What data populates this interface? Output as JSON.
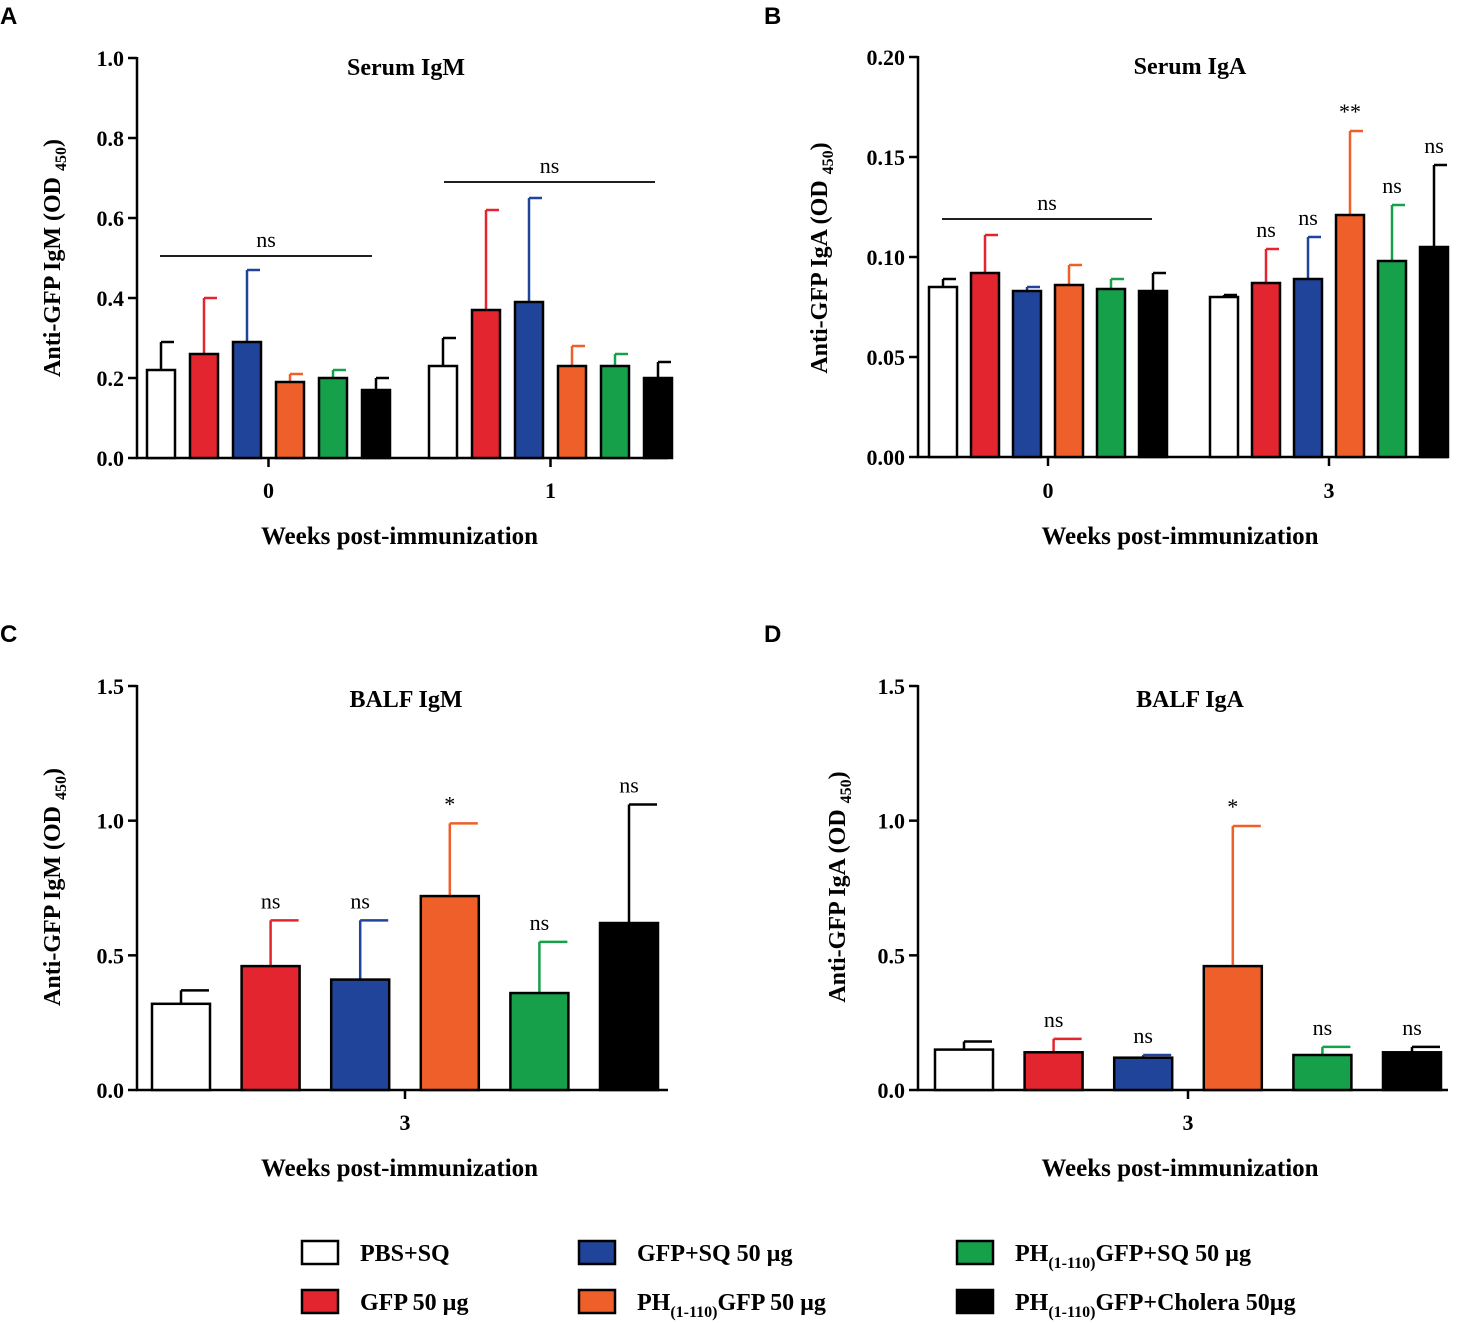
{
  "figure": {
    "groups": [
      {
        "name": "PBS+SQ",
        "color": "#ffffff"
      },
      {
        "name": "GFP 50 µg",
        "color": "#e32530"
      },
      {
        "name": "GFP+SQ 50 µg",
        "color": "#1f449a"
      },
      {
        "name": "PH(1-110)GFP 50 µg",
        "color": "#ef5f2a"
      },
      {
        "name": "PH(1-110)GFP+SQ 50 µg",
        "color": "#16a04a"
      },
      {
        "name": "PH(1-110)GFP+Cholera 50µg",
        "color": "#000000"
      }
    ]
  },
  "legend": {
    "items": [
      {
        "text": "PBS+SQ"
      },
      {
        "text": "GFP 50 µg"
      },
      {
        "text": "GFP+SQ 50 µg"
      },
      {
        "pre": "PH",
        "sub": "(1-110)",
        "post": "GFP 50 µg"
      },
      {
        "pre": "PH",
        "sub": "(1-110)",
        "post": "GFP+SQ 50 µg"
      },
      {
        "pre": "PH",
        "sub": "(1-110)",
        "post": "GFP+Cholera 50µg"
      }
    ]
  },
  "chart_data": [
    {
      "panel": "A",
      "type": "bar",
      "title": "Serum IgM",
      "ylabel_main": "Anti-GFP IgM (OD",
      "ylabel_sub": "450",
      "ylabel_end": ")",
      "xlabel": "Weeks post-immunization",
      "ylim": [
        0,
        1.0
      ],
      "yticks": [
        "0.0",
        "0.2",
        "0.4",
        "0.6",
        "0.8",
        "1.0"
      ],
      "categories": [
        "0",
        "1"
      ],
      "values": [
        [
          0.22,
          0.26,
          0.29,
          0.19,
          0.2,
          0.17
        ],
        [
          0.23,
          0.37,
          0.39,
          0.23,
          0.23,
          0.2
        ]
      ],
      "errors": [
        [
          0.07,
          0.14,
          0.18,
          0.02,
          0.02,
          0.03
        ],
        [
          0.07,
          0.25,
          0.26,
          0.05,
          0.03,
          0.04
        ]
      ],
      "group_annotations": [
        {
          "text": "ns",
          "level": 0.505
        },
        {
          "text": "ns",
          "level": 0.69
        }
      ],
      "bar_annotations": [
        [],
        []
      ]
    },
    {
      "panel": "B",
      "type": "bar",
      "title": "Serum IgA",
      "ylabel_main": "Anti-GFP IgA (OD",
      "ylabel_sub": "450",
      "ylabel_end": ")",
      "xlabel": "Weeks post-immunization",
      "ylim": [
        0,
        0.2
      ],
      "yticks": [
        "0.00",
        "0.05",
        "0.10",
        "0.15",
        "0.20"
      ],
      "categories": [
        "0",
        "3"
      ],
      "values": [
        [
          0.085,
          0.092,
          0.083,
          0.086,
          0.084,
          0.083
        ],
        [
          0.08,
          0.087,
          0.089,
          0.121,
          0.098,
          0.105
        ]
      ],
      "errors": [
        [
          0.004,
          0.019,
          0.002,
          0.01,
          0.005,
          0.009
        ],
        [
          0.001,
          0.017,
          0.021,
          0.042,
          0.028,
          0.041
        ]
      ],
      "group_annotations": [
        {
          "text": "ns",
          "level": 0.119
        },
        null
      ],
      "bar_annotations": [
        [],
        [
          "",
          "ns",
          "ns",
          "**",
          "ns",
          "ns"
        ]
      ]
    },
    {
      "panel": "C",
      "type": "bar",
      "title": "BALF IgM",
      "ylabel_main": "Anti-GFP IgM (OD",
      "ylabel_sub": "450",
      "ylabel_end": ")",
      "xlabel": "Weeks post-immunization",
      "ylim": [
        0,
        1.5
      ],
      "yticks": [
        "0.0",
        "0.5",
        "1.0",
        "1.5"
      ],
      "categories": [
        "3"
      ],
      "values": [
        [
          0.32,
          0.46,
          0.41,
          0.72,
          0.36,
          0.62
        ]
      ],
      "errors": [
        [
          0.05,
          0.17,
          0.22,
          0.27,
          0.19,
          0.44
        ]
      ],
      "group_annotations": [
        null
      ],
      "bar_annotations": [
        [
          "",
          "ns",
          "ns",
          "*",
          "ns",
          "ns"
        ]
      ]
    },
    {
      "panel": "D",
      "type": "bar",
      "title": "BALF IgA",
      "ylabel_main": "Anti-GFP IgA (OD",
      "ylabel_sub": "450",
      "ylabel_end": ")",
      "xlabel": "Weeks post-immunization",
      "ylim": [
        0,
        1.5
      ],
      "yticks": [
        "0.0",
        "0.5",
        "1.0",
        "1.5"
      ],
      "categories": [
        "3"
      ],
      "values": [
        [
          0.15,
          0.14,
          0.12,
          0.46,
          0.13,
          0.14
        ]
      ],
      "errors": [
        [
          0.03,
          0.05,
          0.01,
          0.52,
          0.03,
          0.02
        ]
      ],
      "group_annotations": [
        null
      ],
      "bar_annotations": [
        [
          "",
          "ns",
          "ns",
          "*",
          "ns",
          "ns"
        ]
      ]
    }
  ]
}
